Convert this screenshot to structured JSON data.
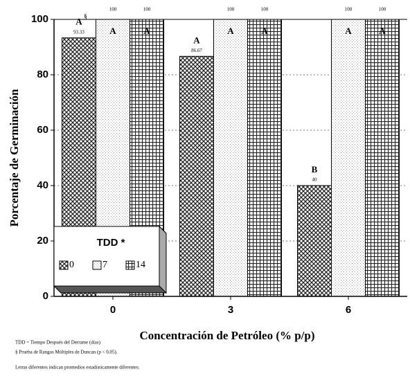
{
  "chart_data": {
    "type": "bar",
    "categories": [
      "0",
      "3",
      "6"
    ],
    "series": [
      {
        "name": "0",
        "pattern": "diag",
        "values": [
          93.33,
          86.67,
          40
        ],
        "letters": [
          "A",
          "A",
          "B"
        ]
      },
      {
        "name": "7",
        "pattern": "dots",
        "values": [
          100,
          100,
          100
        ],
        "letters": [
          "A",
          "A",
          "A"
        ]
      },
      {
        "name": "14",
        "pattern": "grid",
        "values": [
          100,
          100,
          100
        ],
        "letters": [
          "A",
          "A",
          "A"
        ]
      }
    ],
    "letter_mark": "§",
    "ylim": [
      0,
      100
    ],
    "yticks": [
      0,
      20,
      40,
      60,
      80,
      100
    ],
    "grid": true,
    "y_label": "Porcentaje de Germinación",
    "x_label": "Concentración de Petróleo (% p/p)",
    "legend_title": "TDD *",
    "legend": "lower left",
    "footnotes": [
      "TDD = Tiempo Después del Derrame (días)",
      "§ Prueba de Rangos Múltiples de Duncan (p < 0,05).",
      "Letras diferentes indican promedios estadísticamente diferentes."
    ]
  }
}
